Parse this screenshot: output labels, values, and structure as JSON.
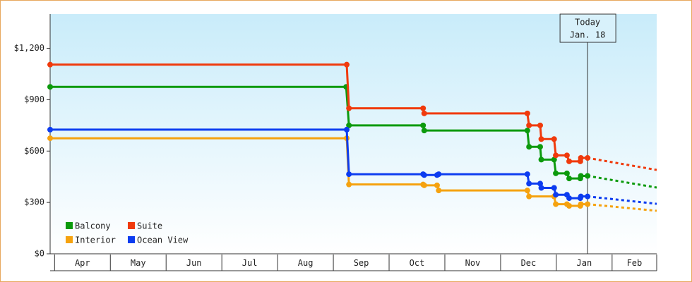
{
  "chart_data": {
    "type": "line",
    "step": true,
    "annotation": {
      "lines": [
        "Today",
        "Jan. 18"
      ],
      "x": 9.56
    },
    "xlim": [
      -0.08,
      10.8
    ],
    "xticks": [
      {
        "value": 0.5,
        "label": "Apr"
      },
      {
        "value": 1.5,
        "label": "May"
      },
      {
        "value": 2.5,
        "label": "Jun"
      },
      {
        "value": 3.5,
        "label": "Jul"
      },
      {
        "value": 4.5,
        "label": "Aug"
      },
      {
        "value": 5.5,
        "label": "Sep"
      },
      {
        "value": 6.5,
        "label": "Oct"
      },
      {
        "value": 7.5,
        "label": "Nov"
      },
      {
        "value": 8.5,
        "label": "Dec"
      },
      {
        "value": 9.5,
        "label": "Jan"
      },
      {
        "value": 10.5,
        "label": "Feb"
      }
    ],
    "ylim": [
      0,
      1400
    ],
    "yticks": [
      {
        "value": 0,
        "label": "$0"
      },
      {
        "value": 300,
        "label": "$300"
      },
      {
        "value": 600,
        "label": "$600"
      },
      {
        "value": 900,
        "label": "$900"
      },
      {
        "value": 1200,
        "label": "$1,200"
      }
    ],
    "legend": "lower left",
    "projection_x": [
      9.56,
      10.8
    ],
    "series": [
      {
        "name": "Balcony",
        "color": "#0c9a0c",
        "x": [
          -0.08,
          5.23,
          5.28,
          6.61,
          6.63,
          8.48,
          8.51,
          8.71,
          8.73,
          8.96,
          8.99,
          9.19,
          9.23,
          9.43,
          9.44,
          9.56
        ],
        "values": [
          975,
          975,
          750,
          750,
          720,
          720,
          625,
          625,
          550,
          550,
          470,
          470,
          440,
          440,
          455,
          455
        ],
        "projection": [
          455,
          387
        ]
      },
      {
        "name": "Suite",
        "color": "#f03a0c",
        "x": [
          -0.08,
          5.24,
          5.28,
          6.61,
          6.63,
          8.48,
          8.51,
          8.71,
          8.73,
          8.96,
          8.99,
          9.19,
          9.23,
          9.43,
          9.44,
          9.56
        ],
        "values": [
          1105,
          1105,
          850,
          850,
          820,
          820,
          750,
          750,
          670,
          670,
          575,
          575,
          540,
          540,
          560,
          560
        ],
        "projection": [
          560,
          490
        ]
      },
      {
        "name": "Interior",
        "color": "#f5a20f",
        "x": [
          -0.08,
          5.24,
          5.28,
          6.61,
          6.63,
          6.86,
          6.89,
          8.48,
          8.51,
          8.96,
          8.99,
          9.19,
          9.23,
          9.43,
          9.44,
          9.56
        ],
        "values": [
          675,
          675,
          405,
          405,
          400,
          400,
          370,
          370,
          335,
          335,
          290,
          290,
          280,
          280,
          290,
          290
        ],
        "projection": [
          290,
          251
        ]
      },
      {
        "name": "Ocean View",
        "color": "#0c3cf0",
        "x": [
          -0.08,
          5.24,
          5.28,
          6.61,
          6.63,
          6.86,
          6.89,
          8.48,
          8.51,
          8.71,
          8.73,
          8.96,
          8.99,
          9.19,
          9.23,
          9.43,
          9.44,
          9.56
        ],
        "values": [
          725,
          725,
          465,
          465,
          460,
          460,
          465,
          465,
          410,
          410,
          385,
          385,
          345,
          345,
          325,
          325,
          335,
          335
        ],
        "projection": [
          335,
          292
        ]
      }
    ]
  }
}
